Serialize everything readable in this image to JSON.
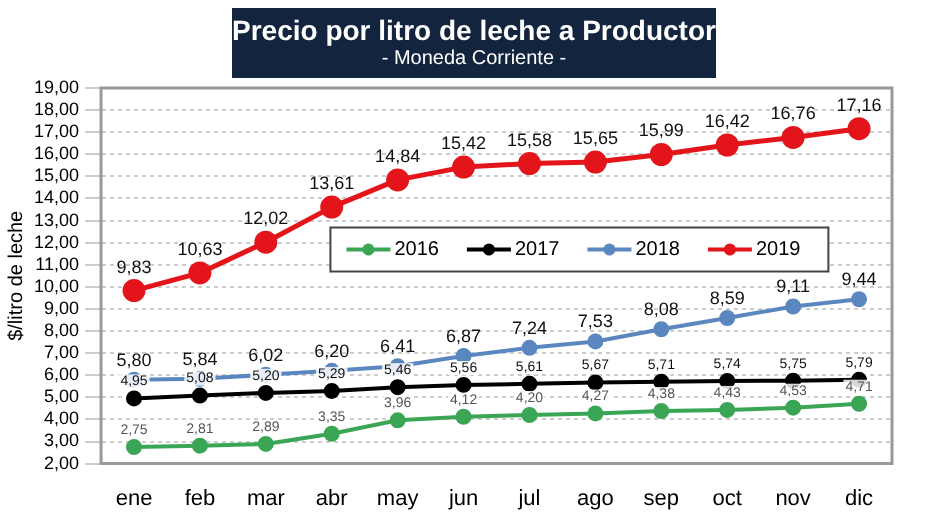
{
  "chart_data": {
    "type": "line",
    "title": "Precio por litro de leche a Productor",
    "subtitle": "- Moneda Corriente -",
    "ylabel": "$/litro de leche",
    "categories": [
      "ene",
      "feb",
      "mar",
      "abr",
      "may",
      "jun",
      "jul",
      "ago",
      "sep",
      "oct",
      "nov",
      "dic"
    ],
    "series": [
      {
        "name": "2016",
        "color": "#3aa655",
        "values": [
          2.75,
          2.81,
          2.89,
          3.35,
          3.96,
          4.12,
          4.2,
          4.27,
          4.38,
          4.43,
          4.53,
          4.71
        ],
        "value_labels": [
          "2,75",
          "2,81",
          "2,89",
          "3,35",
          "3,96",
          "4,12",
          "4,20",
          "4,27",
          "4,38",
          "4,43",
          "4,53",
          "4,71"
        ]
      },
      {
        "name": "2017",
        "color": "#000000",
        "values": [
          4.95,
          5.08,
          5.2,
          5.29,
          5.46,
          5.56,
          5.61,
          5.67,
          5.71,
          5.74,
          5.75,
          5.79
        ],
        "value_labels": [
          "4,95",
          "5,08",
          "5,20",
          "5,29",
          "5,46",
          "5,56",
          "5,61",
          "5,67",
          "5,71",
          "5,74",
          "5,75",
          "5,79"
        ]
      },
      {
        "name": "2018",
        "color": "#5b87c0",
        "values": [
          5.8,
          5.84,
          6.02,
          6.2,
          6.41,
          6.87,
          7.24,
          7.53,
          8.08,
          8.59,
          9.11,
          9.44
        ],
        "value_labels": [
          "5,80",
          "5,84",
          "6,02",
          "6,20",
          "6,41",
          "6,87",
          "7,24",
          "7,53",
          "8,08",
          "8,59",
          "9,11",
          "9,44"
        ]
      },
      {
        "name": "2019",
        "color": "#e3151b",
        "values": [
          9.83,
          10.63,
          12.02,
          13.61,
          14.84,
          15.42,
          15.58,
          15.65,
          15.99,
          16.42,
          16.76,
          17.16
        ],
        "value_labels": [
          "9,83",
          "10,63",
          "12,02",
          "13,61",
          "14,84",
          "15,42",
          "15,58",
          "15,65",
          "15,99",
          "16,42",
          "16,76",
          "17,16"
        ]
      }
    ],
    "ylim": [
      2,
      19
    ],
    "yticks": [
      {
        "value": 2,
        "label": "2,00"
      },
      {
        "value": 3,
        "label": "3,00"
      },
      {
        "value": 4,
        "label": "4,00"
      },
      {
        "value": 5,
        "label": "5,00"
      },
      {
        "value": 6,
        "label": "6,00"
      },
      {
        "value": 7,
        "label": "7,00"
      },
      {
        "value": 8,
        "label": "8,00"
      },
      {
        "value": 9,
        "label": "9,00"
      },
      {
        "value": 10,
        "label": "10,00"
      },
      {
        "value": 11,
        "label": "11,00"
      },
      {
        "value": 12,
        "label": "12,00"
      },
      {
        "value": 13,
        "label": "13,00"
      },
      {
        "value": 14,
        "label": "14,00"
      },
      {
        "value": 15,
        "label": "15,00"
      },
      {
        "value": 16,
        "label": "16,00"
      },
      {
        "value": 17,
        "label": "17,00"
      },
      {
        "value": 18,
        "label": "18,00"
      },
      {
        "value": 19,
        "label": "19,00"
      }
    ],
    "grid": "y",
    "legend": "center",
    "marker": "circle",
    "line_style": "solid"
  }
}
